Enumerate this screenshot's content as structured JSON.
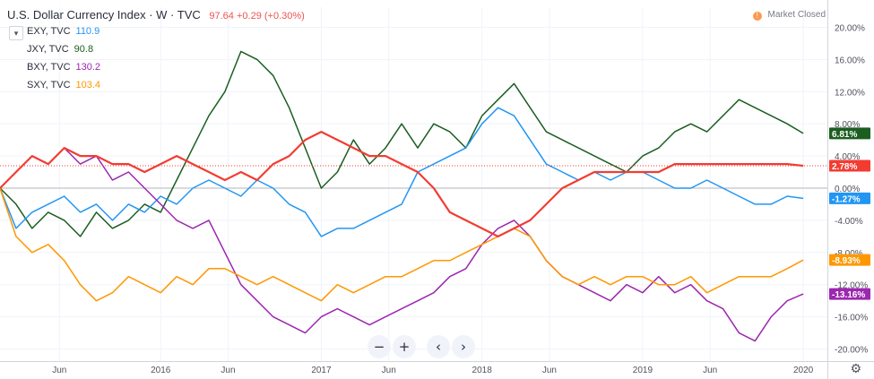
{
  "header": {
    "title": "U.S. Dollar Currency Index · W · TVC",
    "quote": "97.64 +0.29 (+0.30%)"
  },
  "market_status": {
    "icon": "exclamation-icon",
    "label": "Market Closed"
  },
  "legend": {
    "collapse_icon": "chevron-down-icon",
    "items": [
      {
        "label": "EXY, TVC",
        "value": "110.9",
        "color": "#2196f3"
      },
      {
        "label": "JXY, TVC",
        "value": "90.8",
        "color": "#1b5e20"
      },
      {
        "label": "BXY, TVC",
        "value": "130.2",
        "color": "#9c27b0"
      },
      {
        "label": "SXY, TVC",
        "value": "103.4",
        "color": "#ff9800"
      }
    ]
  },
  "navigation": {
    "zoom_out": "−",
    "zoom_in": "+",
    "scroll_left": "‹",
    "scroll_right": "›",
    "settings_icon": "gear-icon"
  },
  "chart_data": {
    "type": "line",
    "title": "U.S. Dollar Currency Index · W · TVC",
    "y_axis": {
      "side": "right",
      "scale": "percent",
      "ylim": [
        -21.5,
        22.5
      ],
      "ticks": [
        "20.00%",
        "16.00%",
        "12.00%",
        "8.00%",
        "4.00%",
        "0.00%",
        "-4.00%",
        "-8.00%",
        "-12.00%",
        "-16.00%",
        "-20.00%"
      ],
      "tick_values": [
        20,
        16,
        12,
        8,
        4,
        0,
        -4,
        -8,
        -12,
        -16,
        -20
      ]
    },
    "x_axis": {
      "xlim": [
        2015.0,
        2020.15
      ],
      "ticks": [
        {
          "label": "Jun",
          "x": 2015.37
        },
        {
          "label": "2016",
          "x": 2016.0
        },
        {
          "label": "Jun",
          "x": 2016.42
        },
        {
          "label": "2017",
          "x": 2017.0
        },
        {
          "label": "Jun",
          "x": 2017.42
        },
        {
          "label": "2018",
          "x": 2018.0
        },
        {
          "label": "Jun",
          "x": 2018.42
        },
        {
          "label": "2019",
          "x": 2019.0
        },
        {
          "label": "Jun",
          "x": 2019.42
        },
        {
          "label": "2020",
          "x": 2020.0
        }
      ]
    },
    "grid": true,
    "series": [
      {
        "name": "JXY",
        "color": "#1b5e20",
        "last_label": "6.81%",
        "x": [
          2015.0,
          2015.1,
          2015.2,
          2015.3,
          2015.4,
          2015.5,
          2015.6,
          2015.7,
          2015.8,
          2015.9,
          2016.0,
          2016.1,
          2016.2,
          2016.3,
          2016.4,
          2016.5,
          2016.6,
          2016.7,
          2016.8,
          2016.9,
          2017.0,
          2017.1,
          2017.2,
          2017.3,
          2017.4,
          2017.5,
          2017.6,
          2017.7,
          2017.8,
          2017.9,
          2018.0,
          2018.1,
          2018.2,
          2018.3,
          2018.4,
          2018.5,
          2018.6,
          2018.7,
          2018.8,
          2018.9,
          2019.0,
          2019.1,
          2019.2,
          2019.3,
          2019.4,
          2019.5,
          2019.6,
          2019.7,
          2019.8,
          2019.9,
          2020.0
        ],
        "y": [
          0,
          -2,
          -5,
          -3,
          -4,
          -6,
          -3,
          -5,
          -4,
          -2,
          -3,
          1,
          5,
          9,
          12,
          17,
          16,
          14,
          10,
          5,
          0,
          2,
          6,
          3,
          5,
          8,
          5,
          8,
          7,
          5,
          9,
          11,
          13,
          10,
          7,
          6,
          5,
          4,
          3,
          2,
          4,
          5,
          7,
          8,
          7,
          9,
          11,
          10,
          9,
          8,
          6.81
        ]
      },
      {
        "name": "EXY",
        "color": "#2196f3",
        "last_label": "-1.27%",
        "x": [
          2015.0,
          2015.1,
          2015.2,
          2015.3,
          2015.4,
          2015.5,
          2015.6,
          2015.7,
          2015.8,
          2015.9,
          2016.0,
          2016.1,
          2016.2,
          2016.3,
          2016.4,
          2016.5,
          2016.6,
          2016.7,
          2016.8,
          2016.9,
          2017.0,
          2017.1,
          2017.2,
          2017.3,
          2017.4,
          2017.5,
          2017.6,
          2017.7,
          2017.8,
          2017.9,
          2018.0,
          2018.1,
          2018.2,
          2018.3,
          2018.4,
          2018.5,
          2018.6,
          2018.7,
          2018.8,
          2018.9,
          2019.0,
          2019.1,
          2019.2,
          2019.3,
          2019.4,
          2019.5,
          2019.6,
          2019.7,
          2019.8,
          2019.9,
          2020.0
        ],
        "y": [
          0,
          -5,
          -3,
          -2,
          -1,
          -3,
          -2,
          -4,
          -2,
          -3,
          -1,
          -2,
          0,
          1,
          0,
          -1,
          1,
          0,
          -2,
          -3,
          -6,
          -5,
          -5,
          -4,
          -3,
          -2,
          2,
          3,
          4,
          5,
          8,
          10,
          9,
          6,
          3,
          2,
          1,
          2,
          1,
          2,
          2,
          1,
          0,
          0,
          1,
          0,
          -1,
          -2,
          -2,
          -1,
          -1.27
        ]
      },
      {
        "name": "BXY",
        "color": "#9c27b0",
        "last_label": "-13.16%",
        "x": [
          2015.0,
          2015.1,
          2015.2,
          2015.3,
          2015.4,
          2015.5,
          2015.6,
          2015.7,
          2015.8,
          2015.9,
          2016.0,
          2016.1,
          2016.2,
          2016.3,
          2016.4,
          2016.5,
          2016.6,
          2016.7,
          2016.8,
          2016.9,
          2017.0,
          2017.1,
          2017.2,
          2017.3,
          2017.4,
          2017.5,
          2017.6,
          2017.7,
          2017.8,
          2017.9,
          2018.0,
          2018.1,
          2018.2,
          2018.3,
          2018.4,
          2018.5,
          2018.6,
          2018.7,
          2018.8,
          2018.9,
          2019.0,
          2019.1,
          2019.2,
          2019.3,
          2019.4,
          2019.5,
          2019.6,
          2019.7,
          2019.8,
          2019.9,
          2020.0
        ],
        "y": [
          0,
          2,
          4,
          3,
          5,
          3,
          4,
          1,
          2,
          0,
          -2,
          -4,
          -5,
          -4,
          -8,
          -12,
          -14,
          -16,
          -17,
          -18,
          -16,
          -15,
          -16,
          -17,
          -16,
          -15,
          -14,
          -13,
          -11,
          -10,
          -7,
          -5,
          -4,
          -6,
          -9,
          -11,
          -12,
          -13,
          -14,
          -12,
          -13,
          -11,
          -13,
          -12,
          -14,
          -15,
          -18,
          -19,
          -16,
          -14,
          -13.16
        ]
      },
      {
        "name": "SXY",
        "color": "#ff9800",
        "last_label": "-8.93%",
        "x": [
          2015.0,
          2015.1,
          2015.2,
          2015.3,
          2015.4,
          2015.5,
          2015.6,
          2015.7,
          2015.8,
          2015.9,
          2016.0,
          2016.1,
          2016.2,
          2016.3,
          2016.4,
          2016.5,
          2016.6,
          2016.7,
          2016.8,
          2016.9,
          2017.0,
          2017.1,
          2017.2,
          2017.3,
          2017.4,
          2017.5,
          2017.6,
          2017.7,
          2017.8,
          2017.9,
          2018.0,
          2018.1,
          2018.2,
          2018.3,
          2018.4,
          2018.5,
          2018.6,
          2018.7,
          2018.8,
          2018.9,
          2019.0,
          2019.1,
          2019.2,
          2019.3,
          2019.4,
          2019.5,
          2019.6,
          2019.7,
          2019.8,
          2019.9,
          2020.0
        ],
        "y": [
          0,
          -6,
          -8,
          -7,
          -9,
          -12,
          -14,
          -13,
          -11,
          -12,
          -13,
          -11,
          -12,
          -10,
          -10,
          -11,
          -12,
          -11,
          -12,
          -13,
          -14,
          -12,
          -13,
          -12,
          -11,
          -11,
          -10,
          -9,
          -9,
          -8,
          -7,
          -6,
          -5,
          -6,
          -9,
          -11,
          -12,
          -11,
          -12,
          -11,
          -11,
          -12,
          -12,
          -11,
          -13,
          -12,
          -11,
          -11,
          -11,
          -10,
          -8.93
        ]
      },
      {
        "name": "DXY",
        "color": "#f23c32",
        "last_label": "2.78%",
        "dotted_last_line": true,
        "x": [
          2015.0,
          2015.1,
          2015.2,
          2015.3,
          2015.4,
          2015.5,
          2015.6,
          2015.7,
          2015.8,
          2015.9,
          2016.0,
          2016.1,
          2016.2,
          2016.3,
          2016.4,
          2016.5,
          2016.6,
          2016.7,
          2016.8,
          2016.9,
          2017.0,
          2017.1,
          2017.2,
          2017.3,
          2017.4,
          2017.5,
          2017.6,
          2017.7,
          2017.8,
          2017.9,
          2018.0,
          2018.1,
          2018.2,
          2018.3,
          2018.4,
          2018.5,
          2018.6,
          2018.7,
          2018.8,
          2018.9,
          2019.0,
          2019.1,
          2019.2,
          2019.3,
          2019.4,
          2019.5,
          2019.6,
          2019.7,
          2019.8,
          2019.9,
          2020.0
        ],
        "y": [
          0,
          2,
          4,
          3,
          5,
          4,
          4,
          3,
          3,
          2,
          3,
          4,
          3,
          2,
          1,
          2,
          1,
          3,
          4,
          6,
          7,
          6,
          5,
          4,
          4,
          3,
          2,
          0,
          -3,
          -4,
          -5,
          -6,
          -5,
          -4,
          -2,
          0,
          1,
          2,
          2,
          2,
          2,
          2,
          3,
          3,
          3,
          3,
          3,
          3,
          3,
          3,
          2.78
        ]
      }
    ]
  }
}
